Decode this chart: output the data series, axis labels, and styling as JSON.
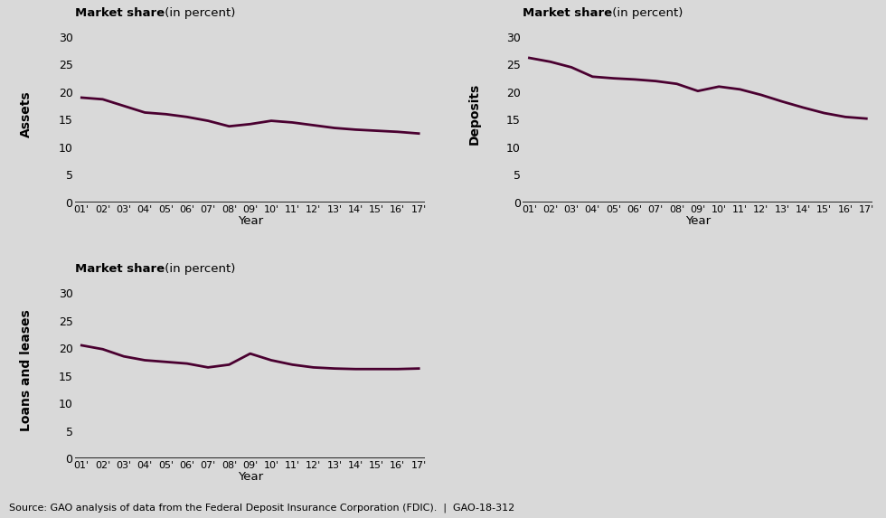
{
  "years": [
    "01'",
    "02'",
    "03'",
    "04'",
    "05'",
    "06'",
    "07'",
    "08'",
    "09'",
    "10'",
    "11'",
    "12'",
    "13'",
    "14'",
    "15'",
    "16'",
    "17'"
  ],
  "assets": [
    19.0,
    18.7,
    17.5,
    16.3,
    16.0,
    15.5,
    14.8,
    13.8,
    14.2,
    14.8,
    14.5,
    14.0,
    13.5,
    13.2,
    13.0,
    12.8,
    12.5
  ],
  "deposits": [
    26.2,
    25.5,
    24.5,
    22.8,
    22.5,
    22.3,
    22.0,
    21.5,
    20.2,
    21.0,
    20.5,
    19.5,
    18.3,
    17.2,
    16.2,
    15.5,
    15.2
  ],
  "loans": [
    20.5,
    19.8,
    18.5,
    17.8,
    17.5,
    17.2,
    16.5,
    17.0,
    19.0,
    17.8,
    17.0,
    16.5,
    16.3,
    16.2,
    16.2,
    16.2,
    16.3
  ],
  "line_color": "#4a0030",
  "bg_color": "#d9d9d9",
  "fig_bg": "#d9d9d9",
  "ylabel_assets": "Assets",
  "ylabel_deposits": "Deposits",
  "ylabel_loans": "Loans and leases",
  "chart_title_bold": "Market share",
  "chart_title_normal": " (in percent)",
  "xlabel": "Year",
  "yticks": [
    0,
    5,
    10,
    15,
    20,
    25,
    30
  ],
  "ylim": [
    0,
    32
  ],
  "source_text": "Source: GAO analysis of data from the Federal Deposit Insurance Corporation (FDIC).  |  GAO-18-312"
}
